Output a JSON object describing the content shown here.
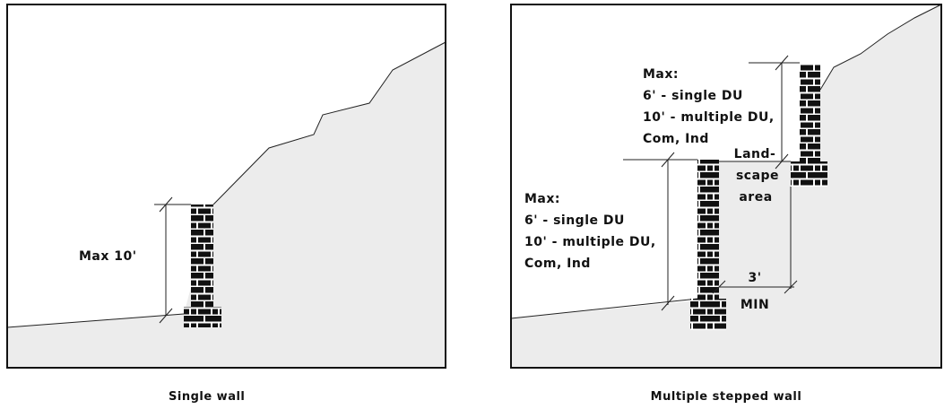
{
  "panels": [
    {
      "caption": "Single wall",
      "height_label": "Max 10'"
    },
    {
      "caption": "Multiple stepped wall",
      "upper_wall_label": [
        "Max:",
        "6' - single DU",
        "10' - multiple DU,",
        "Com, Ind"
      ],
      "lower_wall_label": [
        "Max:",
        "6' - single DU",
        "10' - multiple DU,",
        "Com, Ind"
      ],
      "landscape_label": [
        "Land-",
        "scape",
        "area"
      ],
      "setback_label": [
        "3'",
        "MIN"
      ]
    }
  ]
}
